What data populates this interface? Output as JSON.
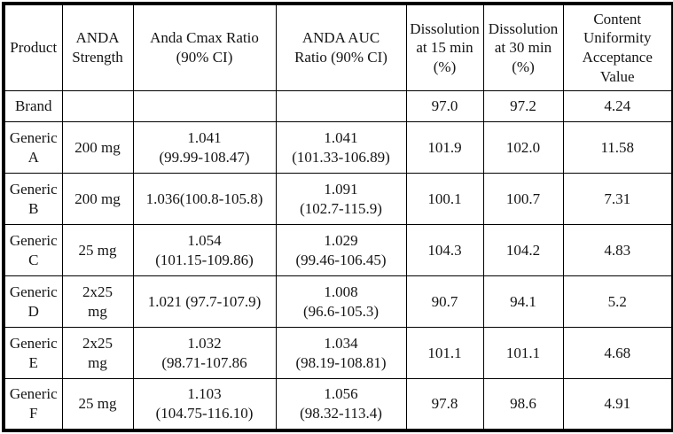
{
  "columns": {
    "product": "Product",
    "strength": "ANDA\nStrength",
    "cmax": "Anda Cmax Ratio\n(90% CI)",
    "auc": "ANDA AUC\nRatio (90% CI)",
    "diss15": "Dissolution\nat 15 min\n(%)",
    "diss30": "Dissolution\nat 30 min\n(%)",
    "cu": "Content\nUniformity\nAcceptance\nValue"
  },
  "rows": [
    {
      "product": "Brand",
      "strength": "",
      "cmax": "",
      "auc": "",
      "diss15": "97.0",
      "diss30": "97.2",
      "cu": "4.24"
    },
    {
      "product": "Generic A",
      "strength": "200 mg",
      "cmax": "1.041\n(99.99-108.47)",
      "auc": "1.041\n(101.33-106.89)",
      "diss15": "101.9",
      "diss30": "102.0",
      "cu": "11.58"
    },
    {
      "product": "Generic B",
      "strength": "200 mg",
      "cmax": "1.036(100.8-105.8)",
      "auc": "1.091\n(102.7-115.9)",
      "diss15": "100.1",
      "diss30": "100.7",
      "cu": "7.31"
    },
    {
      "product": "Generic C",
      "strength": "25 mg",
      "cmax": "1.054\n(101.15-109.86)",
      "auc": "1.029\n(99.46-106.45)",
      "diss15": "104.3",
      "diss30": "104.2",
      "cu": "4.83"
    },
    {
      "product": "Generic D",
      "strength": "2x25\nmg",
      "cmax": "1.021 (97.7-107.9)",
      "auc": "1.008\n(96.6-105.3)",
      "diss15": "90.7",
      "diss30": "94.1",
      "cu": "5.2"
    },
    {
      "product": "Generic E",
      "strength": "2x25\nmg",
      "cmax": "1.032\n(98.71-107.86",
      "auc": "1.034\n(98.19-108.81)",
      "diss15": "101.1",
      "diss30": "101.1",
      "cu": "4.68"
    },
    {
      "product": "Generic F",
      "strength": "25 mg",
      "cmax": "1.103\n(104.75-116.10)",
      "auc": "1.056\n(98.32-113.4)",
      "diss15": "97.8",
      "diss30": "98.6",
      "cu": "4.91"
    }
  ]
}
